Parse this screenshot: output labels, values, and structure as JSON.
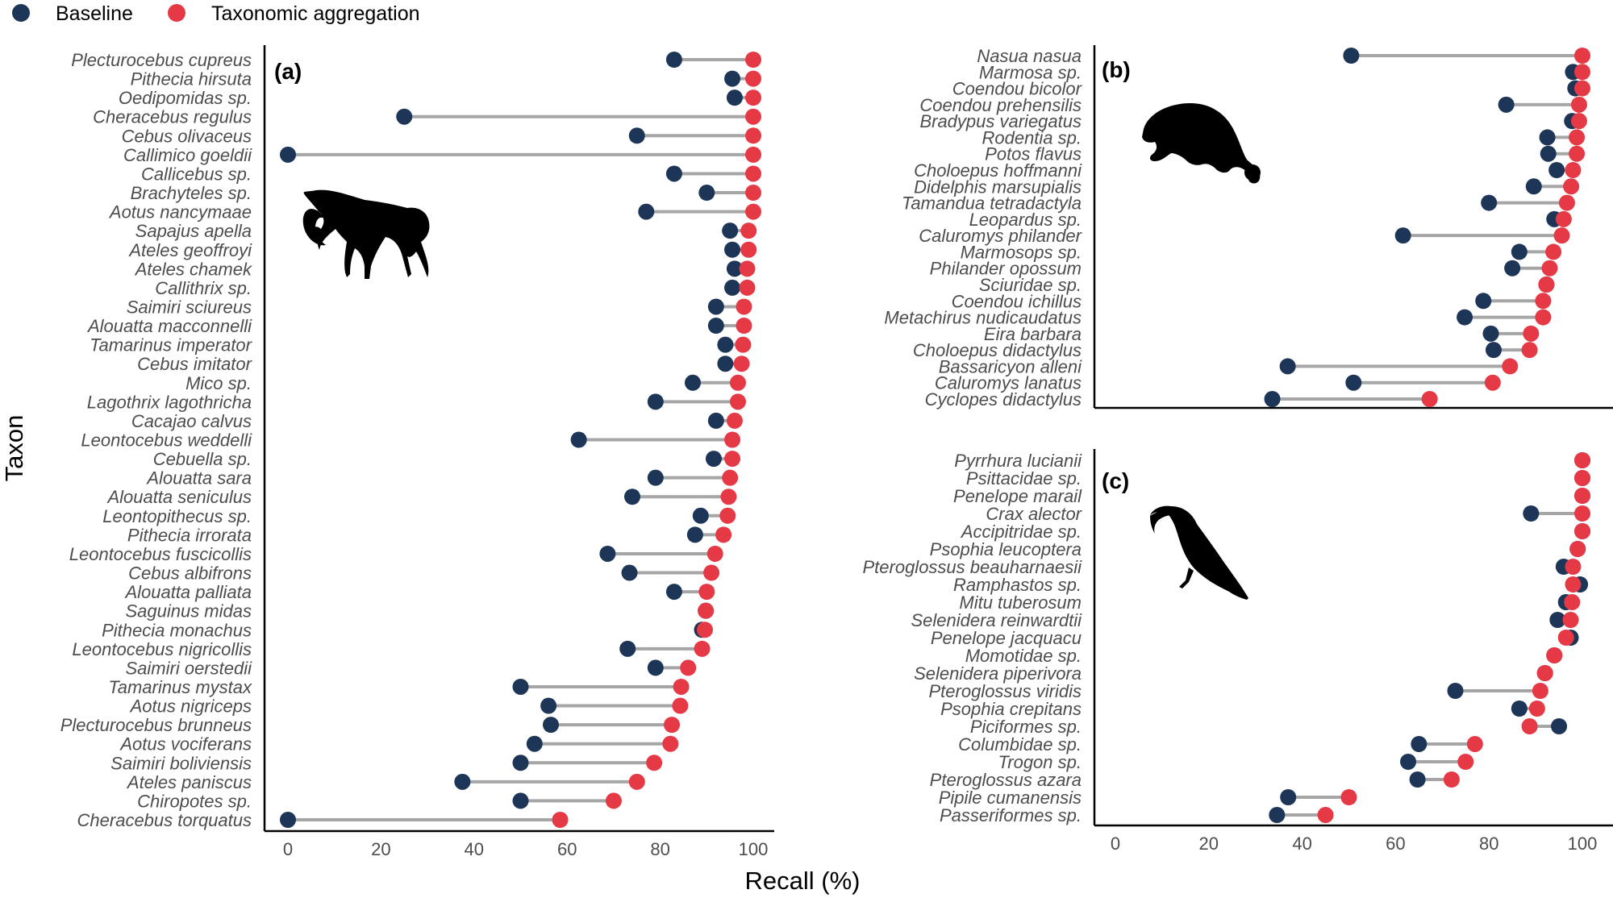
{
  "legend": {
    "items": [
      {
        "label": "Baseline",
        "color": "#1d3557"
      },
      {
        "label": "Taxonomic aggregation",
        "color": "#e63946"
      }
    ]
  },
  "axis": {
    "y_title": "Taxon",
    "x_title": "Recall (%)",
    "x_ticks": [
      "0",
      "20",
      "40",
      "60",
      "80",
      "100"
    ]
  },
  "colors": {
    "baseline": "#1d3557",
    "aggregation": "#e63946",
    "segment": "#a6a6a6"
  },
  "chart_data": [
    {
      "type": "dumbbell",
      "panel": "(a)",
      "silhouette": "monkey-silhouette",
      "xlabel": "Recall (%)",
      "ylabel": "Taxon",
      "xlim": [
        0,
        100
      ],
      "series_names": [
        "Baseline",
        "Taxonomic aggregation"
      ],
      "rows": [
        {
          "taxon": "Plecturocebus cupreus",
          "baseline": 83,
          "aggregation": 100
        },
        {
          "taxon": "Pithecia hirsuta",
          "baseline": 95.5,
          "aggregation": 100
        },
        {
          "taxon": "Oedipomidas sp.",
          "baseline": 96,
          "aggregation": 100
        },
        {
          "taxon": "Cheracebus regulus",
          "baseline": 25,
          "aggregation": 100
        },
        {
          "taxon": "Cebus olivaceus",
          "baseline": 75,
          "aggregation": 100
        },
        {
          "taxon": "Callimico goeldii",
          "baseline": 0,
          "aggregation": 100
        },
        {
          "taxon": "Callicebus sp.",
          "baseline": 83,
          "aggregation": 100
        },
        {
          "taxon": "Brachyteles sp.",
          "baseline": 90,
          "aggregation": 100
        },
        {
          "taxon": "Aotus nancymaae",
          "baseline": 77,
          "aggregation": 100
        },
        {
          "taxon": "Sapajus apella",
          "baseline": 95,
          "aggregation": 99
        },
        {
          "taxon": "Ateles geoffroyi",
          "baseline": 95.5,
          "aggregation": 99
        },
        {
          "taxon": "Ateles chamek",
          "baseline": 96,
          "aggregation": 98.7
        },
        {
          "taxon": "Callithrix sp.",
          "baseline": 95.5,
          "aggregation": 98.7
        },
        {
          "taxon": "Saimiri sciureus",
          "baseline": 92,
          "aggregation": 98
        },
        {
          "taxon": "Alouatta macconnelli",
          "baseline": 92,
          "aggregation": 98
        },
        {
          "taxon": "Tamarinus imperator",
          "baseline": 94,
          "aggregation": 97.8
        },
        {
          "taxon": "Cebus imitator",
          "baseline": 94,
          "aggregation": 97.5
        },
        {
          "taxon": "Mico sp.",
          "baseline": 87,
          "aggregation": 96.7
        },
        {
          "taxon": "Lagothrix lagothricha",
          "baseline": 79,
          "aggregation": 96.7
        },
        {
          "taxon": "Cacajao calvus",
          "baseline": 92,
          "aggregation": 96
        },
        {
          "taxon": "Leontocebus weddelli",
          "baseline": 62.5,
          "aggregation": 95.5
        },
        {
          "taxon": "Cebuella sp.",
          "baseline": 91.5,
          "aggregation": 95.5
        },
        {
          "taxon": "Alouatta sara",
          "baseline": 79,
          "aggregation": 95
        },
        {
          "taxon": "Alouatta seniculus",
          "baseline": 74,
          "aggregation": 94.7
        },
        {
          "taxon": "Leontopithecus sp.",
          "baseline": 88.7,
          "aggregation": 94.5
        },
        {
          "taxon": "Pithecia irrorata",
          "baseline": 87.5,
          "aggregation": 93.6
        },
        {
          "taxon": "Leontocebus fuscicollis",
          "baseline": 68.7,
          "aggregation": 91.8
        },
        {
          "taxon": "Cebus albifrons",
          "baseline": 73.4,
          "aggregation": 91
        },
        {
          "taxon": "Alouatta palliata",
          "baseline": 83,
          "aggregation": 90
        },
        {
          "taxon": "Saguinus midas",
          "baseline": 89.8,
          "aggregation": 89.8
        },
        {
          "taxon": "Pithecia monachus",
          "baseline": 89,
          "aggregation": 89.6
        },
        {
          "taxon": "Leontocebus nigricollis",
          "baseline": 73,
          "aggregation": 89
        },
        {
          "taxon": "Saimiri oerstedii",
          "baseline": 79,
          "aggregation": 86
        },
        {
          "taxon": "Tamarinus mystax",
          "baseline": 50,
          "aggregation": 84.5
        },
        {
          "taxon": "Aotus nigriceps",
          "baseline": 56,
          "aggregation": 84.3
        },
        {
          "taxon": "Plecturocebus brunneus",
          "baseline": 56.5,
          "aggregation": 82.5
        },
        {
          "taxon": "Aotus vociferans",
          "baseline": 53,
          "aggregation": 82.2
        },
        {
          "taxon": "Saimiri boliviensis",
          "baseline": 50,
          "aggregation": 78.7
        },
        {
          "taxon": "Ateles paniscus",
          "baseline": 37.5,
          "aggregation": 75
        },
        {
          "taxon": "Chiropotes sp.",
          "baseline": 50,
          "aggregation": 70
        },
        {
          "taxon": "Cheracebus torquatus",
          "baseline": 0,
          "aggregation": 58.5
        }
      ]
    },
    {
      "type": "dumbbell",
      "panel": "(b)",
      "silhouette": "porcupine-silhouette",
      "xlabel": "Recall (%)",
      "ylabel": "Taxon",
      "xlim": [
        0,
        100
      ],
      "series_names": [
        "Baseline",
        "Taxonomic aggregation"
      ],
      "rows": [
        {
          "taxon": "Nasua nasua",
          "baseline": 50.5,
          "aggregation": 100
        },
        {
          "taxon": "Marmosa sp.",
          "baseline": 98,
          "aggregation": 100
        },
        {
          "taxon": "Coendou bicolor",
          "baseline": 98.5,
          "aggregation": 100
        },
        {
          "taxon": "Coendou prehensilis",
          "baseline": 83.7,
          "aggregation": 99.3
        },
        {
          "taxon": "Bradypus variegatus",
          "baseline": 97.8,
          "aggregation": 99.3
        },
        {
          "taxon": "Rodentia sp.",
          "baseline": 92.5,
          "aggregation": 98.8
        },
        {
          "taxon": "Potos flavus",
          "baseline": 92.7,
          "aggregation": 98.8
        },
        {
          "taxon": "Choloepus hoffmanni",
          "baseline": 94.5,
          "aggregation": 98
        },
        {
          "taxon": "Didelphis marsupialis",
          "baseline": 89.6,
          "aggregation": 97.6
        },
        {
          "taxon": "Tamandua tetradactyla",
          "baseline": 80,
          "aggregation": 96.7
        },
        {
          "taxon": "Leopardus sp.",
          "baseline": 94,
          "aggregation": 96
        },
        {
          "taxon": "Caluromys philander",
          "baseline": 61.6,
          "aggregation": 95.6
        },
        {
          "taxon": "Marmosops sp.",
          "baseline": 86.5,
          "aggregation": 93.8
        },
        {
          "taxon": "Philander opossum",
          "baseline": 85,
          "aggregation": 93
        },
        {
          "taxon": "Sciuridae sp.",
          "baseline": 92.3,
          "aggregation": 92.3
        },
        {
          "taxon": "Coendou ichillus",
          "baseline": 78.8,
          "aggregation": 91.6
        },
        {
          "taxon": "Metachirus nudicaudatus",
          "baseline": 74.8,
          "aggregation": 91.6
        },
        {
          "taxon": "Eira barbara",
          "baseline": 80.4,
          "aggregation": 89
        },
        {
          "taxon": "Choloepus didactylus",
          "baseline": 81,
          "aggregation": 88.7
        },
        {
          "taxon": "Bassaricyon alleni",
          "baseline": 36.9,
          "aggregation": 84.5
        },
        {
          "taxon": "Caluromys lanatus",
          "baseline": 51,
          "aggregation": 80.8
        },
        {
          "taxon": "Cyclopes didactylus",
          "baseline": 33.6,
          "aggregation": 67.3
        }
      ]
    },
    {
      "type": "dumbbell",
      "panel": "(c)",
      "silhouette": "toucan-silhouette",
      "xlabel": "Recall (%)",
      "ylabel": "Taxon",
      "xlim": [
        0,
        100
      ],
      "x_ticks": [
        "0",
        "20",
        "40",
        "60",
        "80",
        "100"
      ],
      "series_names": [
        "Baseline",
        "Taxonomic aggregation"
      ],
      "rows": [
        {
          "taxon": "Pyrrhura lucianii",
          "baseline": 100,
          "aggregation": 100
        },
        {
          "taxon": "Psittacidae sp.",
          "baseline": 100,
          "aggregation": 100
        },
        {
          "taxon": "Penelope marail",
          "baseline": 100,
          "aggregation": 100
        },
        {
          "taxon": "Crax alector",
          "baseline": 89,
          "aggregation": 100
        },
        {
          "taxon": "Accipitridae sp.",
          "baseline": 100,
          "aggregation": 100
        },
        {
          "taxon": "Psophia leucoptera",
          "baseline": 99,
          "aggregation": 99
        },
        {
          "taxon": "Pteroglossus beauharnaesii",
          "baseline": 96,
          "aggregation": 98
        },
        {
          "taxon": "Ramphastos sp.",
          "baseline": 99.5,
          "aggregation": 98
        },
        {
          "taxon": "Mitu tuberosum",
          "baseline": 96.5,
          "aggregation": 97.8
        },
        {
          "taxon": "Selenidera reinwardtii",
          "baseline": 94.7,
          "aggregation": 97.5
        },
        {
          "taxon": "Penelope jacquacu",
          "baseline": 97.5,
          "aggregation": 96.5
        },
        {
          "taxon": "Momotidae sp.",
          "baseline": 94,
          "aggregation": 94
        },
        {
          "taxon": "Selenidera piperivora",
          "baseline": 92,
          "aggregation": 92
        },
        {
          "taxon": "Pteroglossus viridis",
          "baseline": 72.8,
          "aggregation": 91
        },
        {
          "taxon": "Psophia crepitans",
          "baseline": 86.5,
          "aggregation": 90.3
        },
        {
          "taxon": "Piciformes sp.",
          "baseline": 95,
          "aggregation": 88.7
        },
        {
          "taxon": "Columbidae sp.",
          "baseline": 65,
          "aggregation": 77
        },
        {
          "taxon": "Trogon sp.",
          "baseline": 62.7,
          "aggregation": 75
        },
        {
          "taxon": "Pteroglossus azara",
          "baseline": 64.7,
          "aggregation": 72
        },
        {
          "taxon": "Pipile cumanensis",
          "baseline": 37,
          "aggregation": 50
        },
        {
          "taxon": "Passeriformes sp.",
          "baseline": 34.6,
          "aggregation": 45
        }
      ]
    }
  ]
}
